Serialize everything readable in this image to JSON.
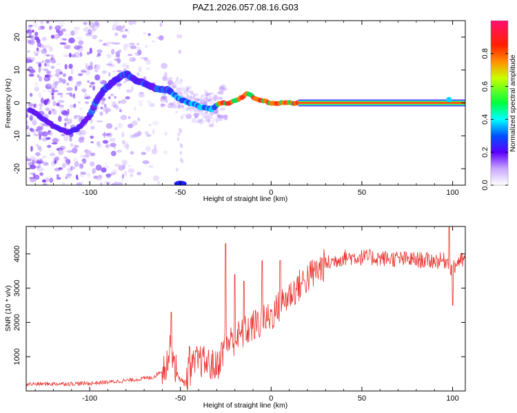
{
  "title": "PAZ1.2026.057.08.16.G03",
  "chart_data": [
    {
      "type": "heatmap",
      "xlabel": "Height of straight line (km)",
      "ylabel": "Frequency (Hz)",
      "xlim": [
        -135,
        107
      ],
      "ylim": [
        -25,
        25
      ],
      "xticks": [
        -100,
        -50,
        0,
        50,
        100
      ],
      "yticks": [
        -20,
        -10,
        0,
        10,
        20
      ],
      "ridge": {
        "x": [
          -133,
          -120,
          -112,
          -107,
          -100,
          -97,
          -92,
          -88,
          -80,
          -75,
          -70,
          -62,
          -57,
          -50,
          -45,
          -40,
          -33,
          -28,
          -23,
          -18,
          -13,
          -8,
          0,
          5,
          15,
          30,
          60,
          97,
          100,
          107
        ],
        "freq": [
          -2,
          -7,
          -9,
          -8,
          -4,
          0,
          4,
          6,
          9,
          7,
          6,
          4,
          4,
          1,
          0,
          -1,
          -2,
          0,
          0,
          1,
          3,
          1,
          0,
          0,
          0,
          0,
          0,
          0,
          0,
          0
        ]
      },
      "colorbar": {
        "label": "Normalized spectral amplitude",
        "range": [
          0,
          1
        ],
        "ticks": [
          "0.0",
          "0.2",
          "0.4",
          "0.6",
          "0.8"
        ],
        "colormap": [
          "#ffffff",
          "#8a2be2",
          "#1e1eff",
          "#00ffff",
          "#00ff00",
          "#ffff00",
          "#ff8000",
          "#ff0000",
          "#ff1493"
        ]
      }
    },
    {
      "type": "line",
      "xlabel": "Height of straight line (km)",
      "ylabel": "SNR (10 * v/v)",
      "xlim": [
        -135,
        107
      ],
      "ylim": [
        0,
        4800
      ],
      "xticks": [
        -100,
        -50,
        0,
        50,
        100
      ],
      "yticks": [
        1000,
        2000,
        3000,
        4000
      ],
      "line_color": "#e8302a",
      "envelope": {
        "x": [
          -135,
          -100,
          -80,
          -65,
          -60,
          -57,
          -55,
          -52,
          -48,
          -45,
          -40,
          -35,
          -30,
          -25,
          -20,
          -15,
          -10,
          -5,
          0,
          10,
          20,
          30,
          40,
          50,
          70,
          90,
          97,
          100,
          103,
          107
        ],
        "snr": [
          200,
          220,
          300,
          400,
          600,
          900,
          1300,
          500,
          200,
          600,
          900,
          800,
          700,
          1400,
          1500,
          1700,
          1900,
          2000,
          2200,
          2800,
          3300,
          3700,
          3900,
          3900,
          3850,
          3800,
          3800,
          3500,
          3800,
          3800
        ]
      },
      "spikes": [
        {
          "x": -55,
          "snr": 2300
        },
        {
          "x": -45,
          "snr": 1300
        },
        {
          "x": -25,
          "snr": 4300
        },
        {
          "x": -20,
          "snr": 3400
        },
        {
          "x": -15,
          "snr": 3200
        },
        {
          "x": -5,
          "snr": 3800
        },
        {
          "x": 5,
          "snr": 3800
        },
        {
          "x": 98,
          "snr": 4800
        },
        {
          "x": 100,
          "snr": 2500
        }
      ],
      "noise_amplitude": [
        120,
        700,
        350,
        150
      ]
    }
  ]
}
